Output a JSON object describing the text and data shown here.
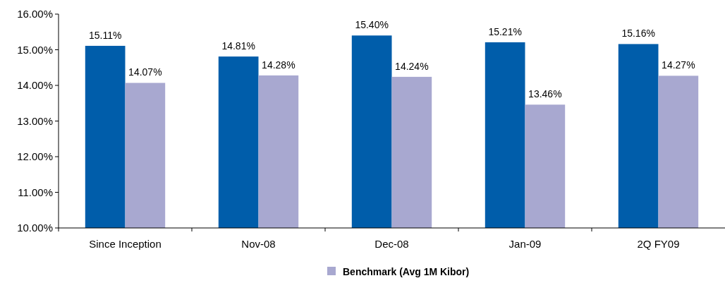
{
  "chart_data": {
    "type": "bar",
    "categories": [
      "Since Inception",
      "Nov-08",
      "Dec-08",
      "Jan-09",
      "2Q FY09"
    ],
    "series": [
      {
        "color": "#005daa",
        "values": [
          15.11,
          14.81,
          15.4,
          15.21,
          15.16
        ]
      },
      {
        "name": "Benchmark (Avg 1M Kibor)",
        "color": "#a8a8d0",
        "values": [
          14.07,
          14.28,
          14.24,
          13.46,
          14.27
        ]
      }
    ],
    "value_labels": [
      [
        "15.11%",
        "14.81%",
        "15.40%",
        "15.21%",
        "15.16%"
      ],
      [
        "14.07%",
        "14.28%",
        "14.24%",
        "13.46%",
        "14.27%"
      ]
    ],
    "ylim": [
      10,
      16
    ],
    "yticks": [
      {
        "value": 10,
        "label": "10.00%"
      },
      {
        "value": 11,
        "label": "11.00%"
      },
      {
        "value": 12,
        "label": "12.00%"
      },
      {
        "value": 13,
        "label": "13.00%"
      },
      {
        "value": 14,
        "label": "14.00%"
      },
      {
        "value": 15,
        "label": "15.00%"
      },
      {
        "value": 16,
        "label": "16.00%"
      }
    ],
    "legend": "bottom"
  }
}
